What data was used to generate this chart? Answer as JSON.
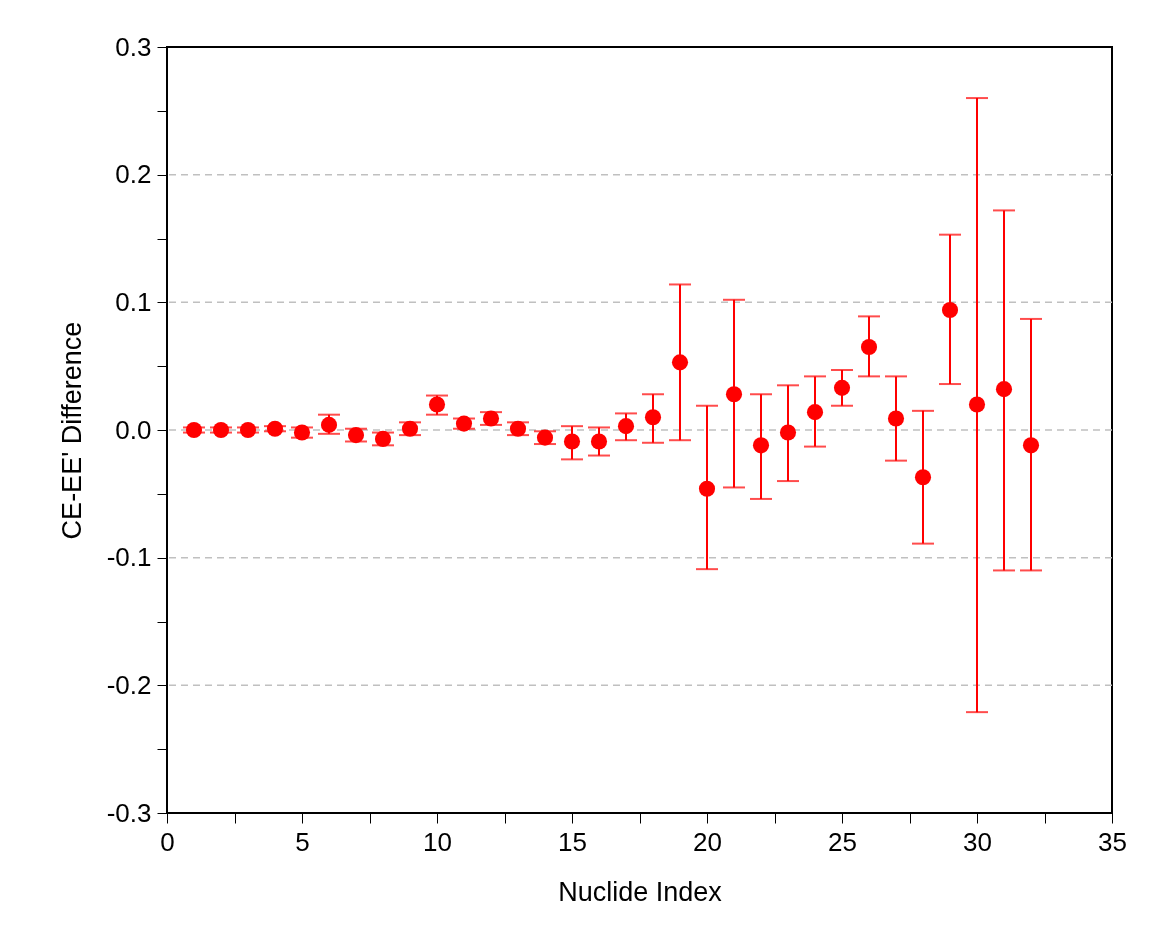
{
  "chart_data": {
    "type": "scatter",
    "xlabel": "Nuclide Index",
    "ylabel": "CE-EE' Difference",
    "x": [
      1,
      2,
      3,
      4,
      5,
      6,
      7,
      8,
      9,
      10,
      11,
      12,
      13,
      14,
      15,
      16,
      17,
      18,
      19,
      20,
      21,
      22,
      23,
      24,
      25,
      26,
      27,
      28,
      29,
      30,
      31,
      32
    ],
    "series": [
      {
        "color": "#ff0000",
        "values": [
          0.0,
          0.0,
          0.0,
          0.001,
          -0.002,
          0.004,
          -0.004,
          -0.007,
          0.001,
          0.02,
          0.005,
          0.009,
          0.001,
          -0.006,
          -0.009,
          -0.009,
          0.003,
          0.01,
          0.053,
          -0.046,
          0.028,
          -0.012,
          -0.002,
          0.014,
          0.033,
          0.065,
          0.009,
          -0.037,
          0.094,
          0.02,
          0.032,
          -0.012
        ],
        "errors": [
          0.002,
          0.002,
          0.002,
          0.002,
          0.004,
          [
            -0.003,
            0.012
          ],
          0.005,
          0.005,
          0.005,
          [
            0.012,
            0.027
          ],
          0.004,
          0.005,
          0.005,
          0.005,
          [
            -0.023,
            0.003
          ],
          [
            -0.02,
            0.002
          ],
          [
            -0.008,
            0.013
          ],
          [
            -0.01,
            0.028
          ],
          [
            -0.008,
            0.114
          ],
          [
            -0.109,
            0.019
          ],
          [
            -0.045,
            0.102
          ],
          [
            -0.054,
            0.028
          ],
          [
            -0.04,
            0.035
          ],
          [
            -0.013,
            0.042
          ],
          [
            0.019,
            0.047
          ],
          [
            0.042,
            0.089
          ],
          [
            -0.024,
            0.042
          ],
          [
            -0.089,
            0.015
          ],
          [
            0.036,
            0.153
          ],
          [
            -0.221,
            0.26
          ],
          [
            -0.11,
            0.172
          ],
          [
            -0.11,
            0.087
          ]
        ]
      }
    ],
    "xlim": [
      0,
      35
    ],
    "xticks": [
      0,
      {
        "value": 2.5,
        "label": null
      },
      5,
      {
        "value": 7.5,
        "label": null
      },
      10,
      {
        "value": 12.5,
        "label": null
      },
      15,
      {
        "value": 17.5,
        "label": null
      },
      20,
      {
        "value": 22.5,
        "label": null
      },
      25,
      {
        "value": 27.5,
        "label": null
      },
      30,
      {
        "value": 32.5,
        "label": null
      },
      35
    ],
    "ylim": [
      -0.3,
      0.3
    ],
    "yticks": [
      {
        "value": -0.3,
        "label": "-0.3"
      },
      {
        "value": -0.25,
        "label": null
      },
      {
        "value": -0.2,
        "label": "-0.2"
      },
      {
        "value": -0.15,
        "label": null
      },
      {
        "value": -0.1,
        "label": "-0.1"
      },
      {
        "value": -0.05,
        "label": null
      },
      {
        "value": 0,
        "label": "0.0"
      },
      {
        "value": 0.05,
        "label": null
      },
      {
        "value": 0.1,
        "label": "0.1"
      },
      {
        "value": 0.15,
        "label": null
      },
      {
        "value": 0.2,
        "label": "0.2"
      },
      {
        "value": 0.25,
        "label": null
      },
      {
        "value": 0.3,
        "label": "0.3"
      }
    ],
    "grid": "y",
    "marker": "circle"
  }
}
